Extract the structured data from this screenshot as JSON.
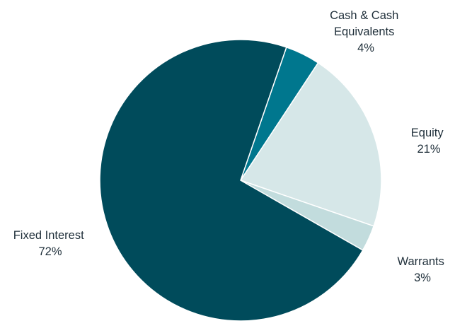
{
  "chart_data": {
    "type": "pie",
    "categories": [
      "Cash & Cash Equivalents",
      "Equity",
      "Warrants",
      "Fixed Interest"
    ],
    "values": [
      4,
      21,
      3,
      72
    ],
    "labels": [
      {
        "lines": [
          "Cash & Cash",
          "Equivalents",
          "4%"
        ]
      },
      {
        "lines": [
          "Equity",
          "21%"
        ]
      },
      {
        "lines": [
          "Warrants",
          "3%"
        ]
      },
      {
        "lines": [
          "Fixed Interest",
          "72%"
        ]
      }
    ],
    "colors": [
      "#00778e",
      "#d6e7e8",
      "#c2dcdd",
      "#004b5b"
    ],
    "start_angle_deg_clockwise_from_top": 19,
    "direction": "clockwise"
  }
}
